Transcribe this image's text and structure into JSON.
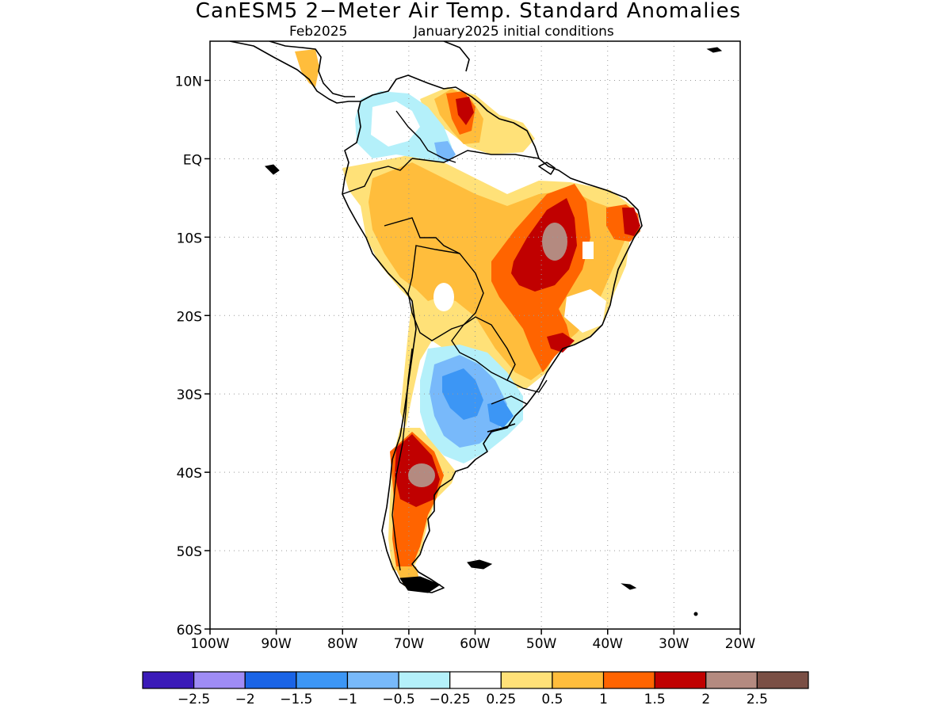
{
  "title": "CanESM5 2−Meter Air Temp. Standard Anomalies",
  "subtitle": {
    "left": "Feb2025",
    "right": "January2025 initial conditions"
  },
  "map": {
    "lon_range": [
      -100,
      -20
    ],
    "lat_range": [
      -60,
      15
    ],
    "lat_ticks": [
      {
        "value": 10,
        "label": "10N"
      },
      {
        "value": 0,
        "label": "EQ"
      },
      {
        "value": -10,
        "label": "10S"
      },
      {
        "value": -20,
        "label": "20S"
      },
      {
        "value": -30,
        "label": "30S"
      },
      {
        "value": -40,
        "label": "40S"
      },
      {
        "value": -50,
        "label": "50S"
      },
      {
        "value": -60,
        "label": "60S"
      }
    ],
    "lon_ticks": [
      {
        "value": -100,
        "label": "100W"
      },
      {
        "value": -90,
        "label": "90W"
      },
      {
        "value": -80,
        "label": "80W"
      },
      {
        "value": -70,
        "label": "70W"
      },
      {
        "value": -60,
        "label": "60W"
      },
      {
        "value": -50,
        "label": "50W"
      },
      {
        "value": -40,
        "label": "40W"
      },
      {
        "value": -30,
        "label": "30W"
      },
      {
        "value": -20,
        "label": "20W"
      }
    ],
    "grid": "dotted",
    "anomaly_regions": [
      {
        "name": "NE Brazil warm core",
        "lon": -47.5,
        "lat": -9.5,
        "value": 2.3
      },
      {
        "name": "Northern Patagonia warm core",
        "lon": -68.5,
        "lat": -40.0,
        "value": 2.3
      },
      {
        "name": "Pampas cool anomaly",
        "lon": -62.0,
        "lat": -29.5,
        "value": -1.2
      },
      {
        "name": "Venezuela warm anomaly",
        "lon": -63.5,
        "lat": 8.0,
        "value": 1.7
      },
      {
        "name": "Colombia cool anomaly",
        "lon": -71.0,
        "lat": 6.5,
        "value": -0.4
      }
    ]
  },
  "colorbar": {
    "colors": [
      "#3a1ab8",
      "#9f8cf5",
      "#1a64e6",
      "#3c96f5",
      "#78b9fa",
      "#b4f0fa",
      "#ffffff",
      "#ffe178",
      "#ffbd3c",
      "#ff6400",
      "#c00000",
      "#b48a80",
      "#7a4f45"
    ],
    "labels": [
      "−2.5",
      "−2",
      "−1.5",
      "−1",
      "−0.5",
      "−0.25",
      "0.25",
      "0.5",
      "1",
      "1.5",
      "2",
      "2.5"
    ]
  }
}
